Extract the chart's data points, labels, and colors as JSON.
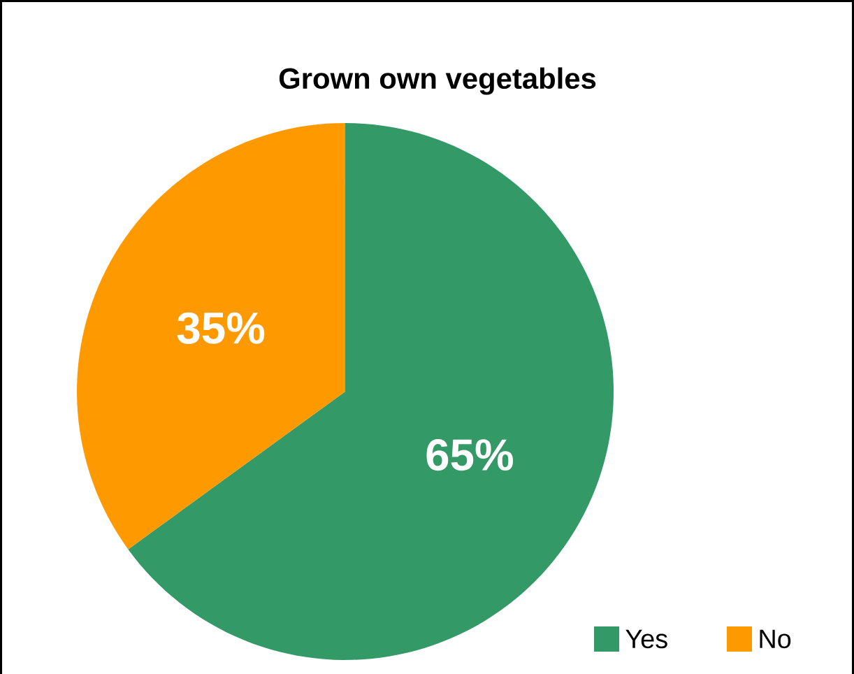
{
  "chart_data": {
    "type": "pie",
    "title": "Grown own vegetables",
    "categories": [
      "Yes",
      "No"
    ],
    "values": [
      65,
      35
    ],
    "colors": [
      "#339966",
      "#ff9900"
    ],
    "value_labels": [
      "65%",
      "35%"
    ],
    "legend": "bottom right"
  }
}
